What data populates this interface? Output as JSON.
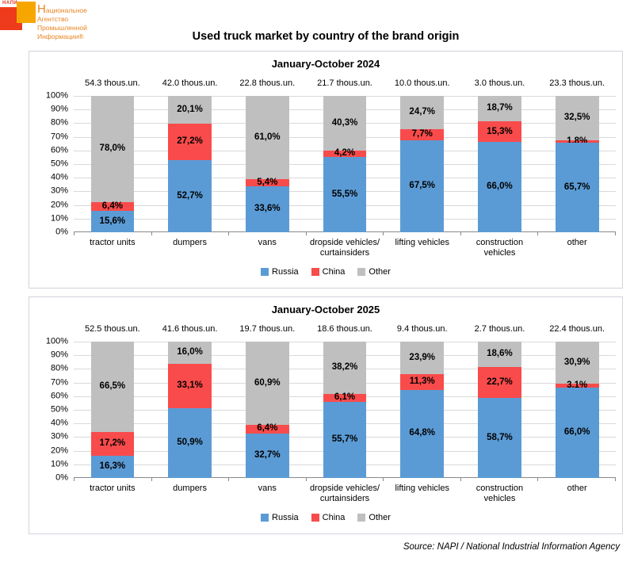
{
  "page": {
    "title": "Used truck market by country of the brand origin",
    "source": "Source: NAPI / National Industrial Information Agency"
  },
  "logo": {
    "abbr": "НАПИ",
    "name_lines": [
      "Национальное",
      "Агентство",
      "Промышленной",
      "Информации®"
    ],
    "red_square_color": "#EE3B1C",
    "orange_square_color": "#F7A600",
    "text_color": "#E98524"
  },
  "colors": {
    "russia": "#5B9BD5",
    "china": "#F94B4B",
    "other": "#BFBFBF",
    "gridline": "#D9D9D9",
    "axis": "#898989",
    "panel_border": "#D2D2DC"
  },
  "chart_data": [
    {
      "type": "bar",
      "stacked": true,
      "title": "January-October 2024",
      "categories": [
        "tractor units",
        "dumpers",
        "vans",
        "dropside vehicles/\ncurtainsiders",
        "lifting vehicles",
        "construction\nvehicles",
        "other"
      ],
      "totals_thous_units": [
        54.3,
        42.0,
        22.8,
        21.7,
        10.0,
        3.0,
        23.3
      ],
      "totals_unit_suffix": "thous.un.",
      "series": [
        {
          "name": "Russia",
          "color": "#5B9BD5",
          "values": [
            15.6,
            52.7,
            33.6,
            55.5,
            67.5,
            66.0,
            65.7
          ]
        },
        {
          "name": "China",
          "color": "#F94B4B",
          "values": [
            6.4,
            27.2,
            5.4,
            4.2,
            7.7,
            15.3,
            1.8
          ]
        },
        {
          "name": "Other",
          "color": "#BFBFBF",
          "values": [
            78.0,
            20.1,
            61.0,
            40.3,
            24.7,
            18.7,
            32.5
          ]
        }
      ],
      "ylim": [
        0,
        100
      ],
      "ytick_labels": [
        "0%",
        "10%",
        "20%",
        "30%",
        "40%",
        "50%",
        "60%",
        "70%",
        "80%",
        "90%",
        "100%"
      ],
      "grid": true,
      "legend_position": "bottom"
    },
    {
      "type": "bar",
      "stacked": true,
      "title": "January-October 2025",
      "categories": [
        "tractor units",
        "dumpers",
        "vans",
        "dropside vehicles/\ncurtainsiders",
        "lifting vehicles",
        "construction\nvehicles",
        "other"
      ],
      "totals_thous_units": [
        52.5,
        41.6,
        19.7,
        18.6,
        9.4,
        2.7,
        22.4
      ],
      "totals_unit_suffix": "thous.un.",
      "series": [
        {
          "name": "Russia",
          "color": "#5B9BD5",
          "values": [
            16.3,
            50.9,
            32.7,
            55.7,
            64.8,
            58.7,
            66.0
          ]
        },
        {
          "name": "China",
          "color": "#F94B4B",
          "values": [
            17.2,
            33.1,
            6.4,
            6.1,
            11.3,
            22.7,
            3.1
          ]
        },
        {
          "name": "Other",
          "color": "#BFBFBF",
          "values": [
            66.5,
            16.0,
            60.9,
            38.2,
            23.9,
            18.6,
            30.9
          ]
        }
      ],
      "ylim": [
        0,
        100
      ],
      "ytick_labels": [
        "0%",
        "10%",
        "20%",
        "30%",
        "40%",
        "50%",
        "60%",
        "70%",
        "80%",
        "90%",
        "100%"
      ],
      "grid": true,
      "legend_position": "bottom"
    }
  ]
}
